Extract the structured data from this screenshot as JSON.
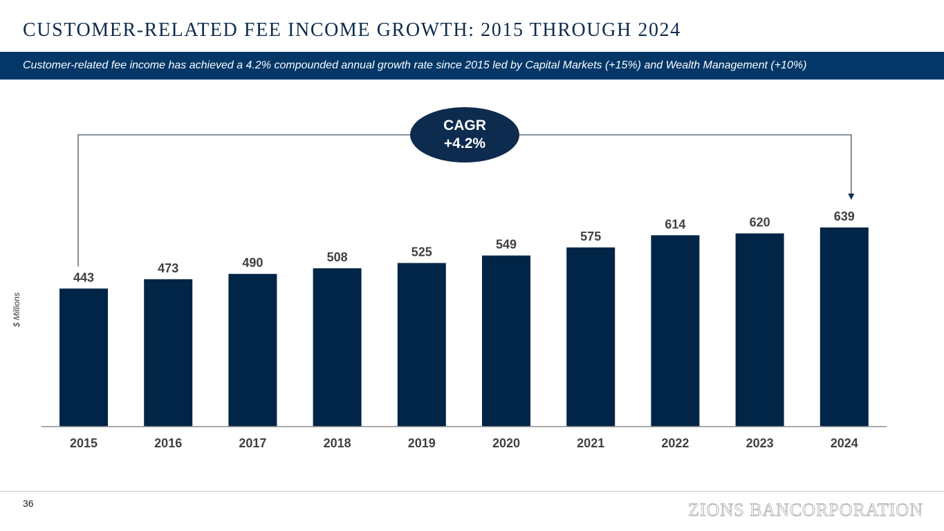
{
  "header": {
    "title": "CUSTOMER-RELATED FEE INCOME GROWTH: 2015 THROUGH 2024",
    "subtitle": "Customer-related fee income has achieved a 4.2% compounded annual growth rate since 2015 led by Capital Markets (+15%) and Wealth Management (+10%)"
  },
  "cagr_badge": {
    "line1": "CAGR",
    "line2": "+4.2%"
  },
  "footer": {
    "page_number": "36",
    "logo": "ZIONS BANCORPORATION"
  },
  "colors": {
    "bar": "#012546",
    "banner": "#023768",
    "text": "#404040"
  },
  "chart_data": {
    "type": "bar",
    "categories": [
      "2015",
      "2016",
      "2017",
      "2018",
      "2019",
      "2020",
      "2021",
      "2022",
      "2023",
      "2024"
    ],
    "values": [
      443,
      473,
      490,
      508,
      525,
      549,
      575,
      614,
      620,
      639
    ],
    "title": "",
    "xlabel": "",
    "ylabel": "$ Millions",
    "ylim": [
      0,
      639
    ],
    "grid": false,
    "data_labels": true
  }
}
